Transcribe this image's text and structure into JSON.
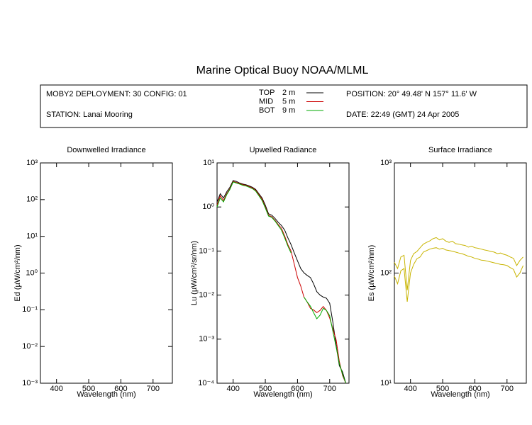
{
  "header": {
    "title": "Marine Optical Buoy NOAA/MLML",
    "deployment": "MOBY2 DEPLOYMENT: 30 CONFIG: 01",
    "station": "STATION: Lanai Mooring",
    "position": "POSITION: 20° 49.48' N   157° 11.6' W",
    "date": "DATE: 22:49 (GMT) 24 Apr 2005"
  },
  "chart_data": [
    {
      "type": "line",
      "title": "Downwelled Irradiance",
      "x_label": "Wavelength (nm)",
      "y_label": "Ed  (µW/cm²/nm)",
      "log_y": true,
      "xlim": [
        350,
        760
      ],
      "xticks": [
        400,
        500,
        600,
        700
      ],
      "ylim": [
        0.001,
        1000
      ],
      "yticks": [
        {
          "value": 0.001,
          "label": "10⁻³"
        },
        {
          "value": 0.01,
          "label": "10⁻²"
        },
        {
          "value": 0.1,
          "label": "10⁻¹"
        },
        {
          "value": 1,
          "label": "10⁰"
        },
        {
          "value": 10,
          "label": "10¹"
        },
        {
          "value": 100,
          "label": "10²"
        },
        {
          "value": 1000,
          "label": "10³"
        }
      ],
      "series": []
    },
    {
      "type": "line",
      "title": "Upwelled Radiance",
      "x_label": "Wavelength (nm)",
      "y_label": "Lu  (µW/cm²/sr/nm)",
      "log_y": true,
      "xlim": [
        350,
        760
      ],
      "xticks": [
        400,
        500,
        600,
        700
      ],
      "ylim": [
        0.0001,
        10
      ],
      "yticks": [
        {
          "value": 0.0001,
          "label": "10⁻⁴"
        },
        {
          "value": 0.001,
          "label": "10⁻³"
        },
        {
          "value": 0.01,
          "label": "10⁻²"
        },
        {
          "value": 0.1,
          "label": "10⁻¹"
        },
        {
          "value": 1,
          "label": "10⁰"
        },
        {
          "value": 10,
          "label": "10¹"
        }
      ],
      "x": [
        350,
        360,
        370,
        380,
        390,
        400,
        410,
        420,
        430,
        440,
        450,
        460,
        470,
        480,
        490,
        500,
        510,
        520,
        530,
        540,
        550,
        560,
        570,
        580,
        590,
        600,
        610,
        620,
        630,
        640,
        650,
        660,
        670,
        680,
        690,
        700,
        710,
        720,
        730,
        740,
        750
      ],
      "series": [
        {
          "name": "TOP",
          "depth": "2  m",
          "color": "#000000",
          "values": [
            1.3,
            2.0,
            1.6,
            2.2,
            2.8,
            4.0,
            3.8,
            3.5,
            3.3,
            3.2,
            3.0,
            2.8,
            2.5,
            2.0,
            1.6,
            1.1,
            0.7,
            0.65,
            0.55,
            0.45,
            0.38,
            0.3,
            0.2,
            0.14,
            0.09,
            0.06,
            0.04,
            0.032,
            0.028,
            0.025,
            0.018,
            0.012,
            0.01,
            0.009,
            0.0085,
            0.0065,
            0.0024,
            0.00072,
            0.00025,
            0.00018,
            0.0001
          ]
        },
        {
          "name": "MID",
          "depth": "5  m",
          "color": "#cc0000",
          "values": [
            1.1,
            1.8,
            1.4,
            2.0,
            2.6,
            3.8,
            3.6,
            3.4,
            3.2,
            3.1,
            2.9,
            2.7,
            2.4,
            1.9,
            1.5,
            1.0,
            0.65,
            0.6,
            0.5,
            0.4,
            0.33,
            0.22,
            0.14,
            0.1,
            0.05,
            0.025,
            0.016,
            0.009,
            0.007,
            0.005,
            0.0046,
            0.004,
            0.0045,
            0.0055,
            0.0045,
            0.003,
            0.0017,
            0.00096,
            0.00031,
            0.00015,
            0.0001
          ]
        },
        {
          "name": "BOT",
          "depth": "9  m",
          "color": "#00aa00",
          "values": [
            1.0,
            1.6,
            1.3,
            1.9,
            2.5,
            3.7,
            3.5,
            3.3,
            3.1,
            3.0,
            2.8,
            2.6,
            2.3,
            1.8,
            1.4,
            0.95,
            0.62,
            0.58,
            0.48,
            0.38,
            0.3,
            0.2,
            0.13,
            0.09,
            null,
            null,
            null,
            0.009,
            0.007,
            0.0056,
            0.004,
            0.0029,
            0.0035,
            0.005,
            0.0045,
            0.0034,
            0.0015,
            0.00066,
            0.00028,
            0.00016,
            0.0001
          ]
        }
      ]
    },
    {
      "type": "line",
      "title": "Surface Irradiance",
      "x_label": "Wavelength (nm)",
      "y_label": "Es  (µW/cm²/nm)",
      "log_y": true,
      "xlim": [
        350,
        760
      ],
      "xticks": [
        400,
        500,
        600,
        700
      ],
      "ylim": [
        10,
        1000
      ],
      "yticks": [
        {
          "value": 10,
          "label": "10¹"
        },
        {
          "value": 100,
          "label": "10²"
        },
        {
          "value": 1000,
          "label": "10³"
        }
      ],
      "x": [
        350,
        360,
        370,
        380,
        390,
        400,
        410,
        420,
        430,
        440,
        450,
        460,
        470,
        480,
        490,
        500,
        510,
        520,
        530,
        540,
        550,
        560,
        570,
        580,
        590,
        600,
        610,
        620,
        630,
        640,
        650,
        660,
        670,
        680,
        690,
        700,
        710,
        720,
        730,
        740,
        750
      ],
      "series": [
        {
          "color": "#c8b400",
          "values": [
            125,
            110,
            140,
            145,
            70,
            130,
            150,
            157,
            170,
            183,
            190,
            196,
            205,
            210,
            200,
            205,
            195,
            190,
            195,
            185,
            183,
            180,
            178,
            172,
            175,
            170,
            168,
            165,
            162,
            160,
            157,
            155,
            150,
            152,
            148,
            145,
            140,
            136,
            117,
            130,
            140
          ]
        },
        {
          "color": "#c8b400",
          "values": [
            94,
            80,
            105,
            110,
            55,
            100,
            120,
            135,
            140,
            155,
            160,
            165,
            168,
            170,
            165,
            168,
            162,
            160,
            158,
            155,
            152,
            150,
            146,
            142,
            140,
            136,
            134,
            131,
            130,
            128,
            126,
            124,
            122,
            120,
            119,
            117,
            112,
            108,
            92,
            100,
            117
          ]
        }
      ]
    }
  ]
}
